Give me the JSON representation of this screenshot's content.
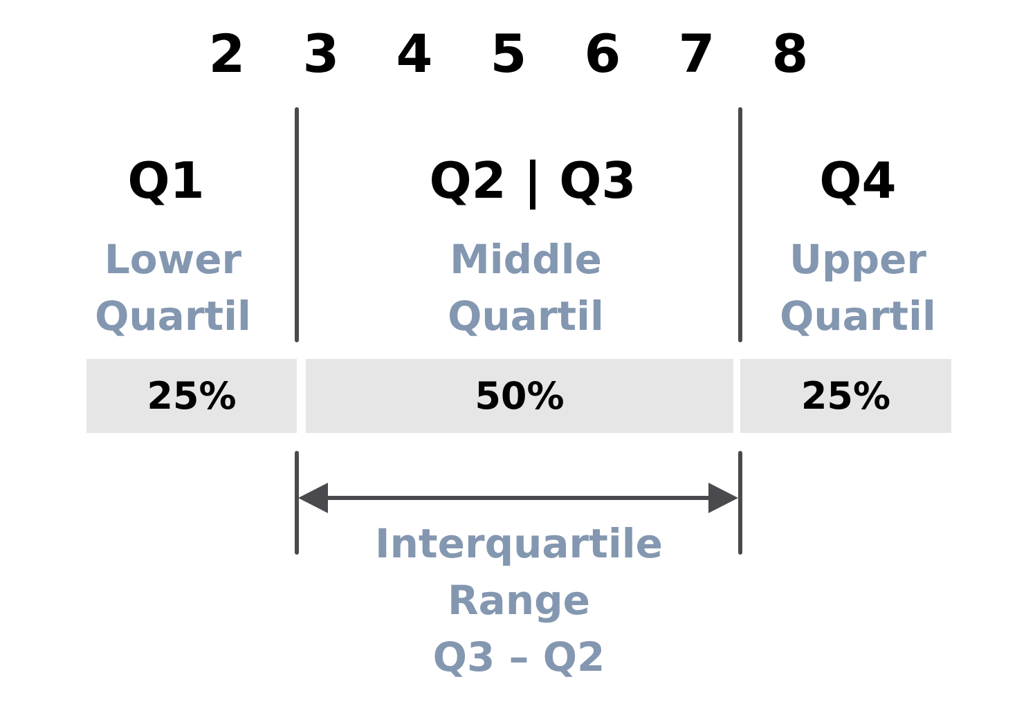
{
  "values": [
    "2",
    "3",
    "4",
    "5",
    "6",
    "7",
    "8"
  ],
  "quartiles": {
    "q1": {
      "head": "Q1",
      "line1": "Lower",
      "line2": "Quartil",
      "pct": "25%"
    },
    "mid": {
      "head": "Q2 | Q3",
      "line1": "Middle",
      "line2": "Quartil",
      "pct": "50%"
    },
    "q4": {
      "head": "Q4",
      "line1": "Upper",
      "line2": "Quartil",
      "pct": "25%"
    }
  },
  "iqr": {
    "line1": "Interquartile",
    "line2": "Range",
    "line3": "Q3 – Q2"
  },
  "colors": {
    "label_blue": "#8497b0",
    "band_gray": "#e6e6e6",
    "line_dark": "#4a4a4e"
  }
}
